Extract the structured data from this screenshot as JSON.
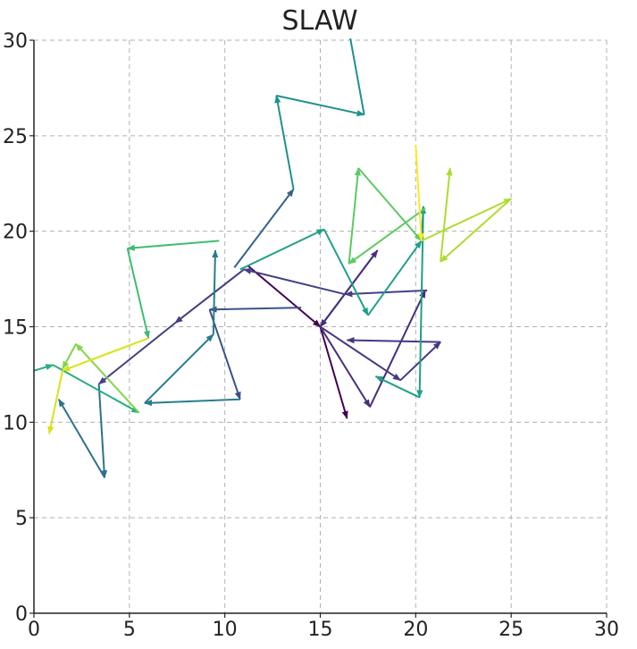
{
  "chart_data": {
    "type": "line",
    "title": "SLAW",
    "xlabel": "",
    "ylabel": "",
    "xlim": [
      0,
      30
    ],
    "ylim": [
      0,
      30
    ],
    "xticks": [
      "0",
      "5",
      "10",
      "15",
      "20",
      "25",
      "30"
    ],
    "yticks": [
      "0",
      "5",
      "10",
      "15",
      "20",
      "25",
      "30"
    ],
    "grid": true,
    "grid_style": "dashed",
    "colormap": "viridis",
    "arrows": true,
    "series": [
      {
        "color": "#440154",
        "points": [
          [
            11.2,
            18.2
          ],
          [
            15,
            15
          ],
          [
            16.4,
            10.2
          ]
        ]
      },
      {
        "color": "#472d7b",
        "points": [
          [
            15,
            15
          ],
          [
            17.6,
            10.8
          ],
          [
            20.5,
            16.9
          ]
        ]
      },
      {
        "color": "#46307e",
        "points": [
          [
            15,
            15
          ],
          [
            18,
            19
          ],
          [
            15,
            15
          ]
        ]
      },
      {
        "color": "#443983",
        "points": [
          [
            15,
            15
          ],
          [
            19.2,
            12.2
          ],
          [
            21.3,
            14.2
          ],
          [
            16.4,
            14.3
          ]
        ]
      },
      {
        "color": "#424086",
        "points": [
          [
            20.6,
            16.9
          ],
          [
            16.3,
            16.7
          ],
          [
            11,
            18
          ],
          [
            7.4,
            15.2
          ],
          [
            3.4,
            12.0
          ]
        ]
      },
      {
        "color": "#3b528b",
        "points": [
          [
            14.0,
            16.0
          ],
          [
            9.2,
            15.9
          ],
          [
            10.8,
            11.2
          ]
        ]
      },
      {
        "color": "#33638d",
        "points": [
          [
            10.5,
            18.1
          ],
          [
            13.6,
            22.2
          ]
        ]
      },
      {
        "color": "#2c728e",
        "points": [
          [
            3.4,
            12.0
          ],
          [
            3.7,
            7.1
          ],
          [
            1.3,
            11.2
          ]
        ]
      },
      {
        "color": "#287d8e",
        "points": [
          [
            10.8,
            11.2
          ],
          [
            5.8,
            11.0
          ],
          [
            9.4,
            14.6
          ],
          [
            9.5,
            19.0
          ]
        ]
      },
      {
        "color": "#21918c",
        "points": [
          [
            13.6,
            22.2
          ],
          [
            12.7,
            27.1
          ],
          [
            17.3,
            26.1
          ],
          [
            16.5,
            30.5
          ]
        ]
      },
      {
        "color": "#1fa088",
        "points": [
          [
            10.8,
            18.0
          ],
          [
            15.2,
            20.1
          ],
          [
            17.5,
            15.6
          ],
          [
            20.3,
            19.5
          ],
          [
            20.4,
            21.3
          ],
          [
            20.2,
            11.3
          ],
          [
            17.9,
            12.4
          ]
        ]
      },
      {
        "color": "#28ae80",
        "points": [
          [
            0,
            12.7
          ],
          [
            1.0,
            13.0
          ],
          [
            5.5,
            10.5
          ]
        ]
      },
      {
        "color": "#3fbc73",
        "points": [
          [
            9.7,
            19.5
          ],
          [
            4.9,
            19.1
          ],
          [
            6.0,
            14.4
          ]
        ]
      },
      {
        "color": "#5ec962",
        "points": [
          [
            20.5,
            21.2
          ],
          [
            16.5,
            18.3
          ],
          [
            17.0,
            23.3
          ],
          [
            20.3,
            19.5
          ]
        ]
      },
      {
        "color": "#84d44b",
        "points": [
          [
            5.5,
            10.5
          ],
          [
            2.2,
            14.1
          ],
          [
            1.5,
            12.8
          ]
        ]
      },
      {
        "color": "#addc30",
        "points": [
          [
            20.3,
            19.5
          ],
          [
            25,
            21.7
          ],
          [
            21.3,
            18.4
          ],
          [
            21.8,
            23.3
          ]
        ]
      },
      {
        "color": "#d8e219",
        "points": [
          [
            6.0,
            14.4
          ],
          [
            1.5,
            12.7
          ],
          [
            0.8,
            9.4
          ]
        ]
      },
      {
        "color": "#fde725",
        "points": [
          [
            20.0,
            24.5
          ],
          [
            20.3,
            19.5
          ]
        ]
      }
    ]
  }
}
